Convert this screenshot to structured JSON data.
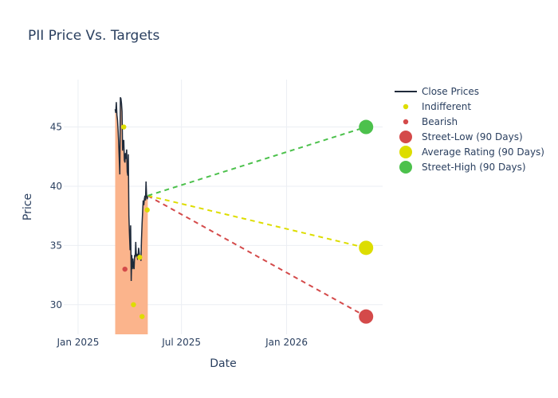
{
  "chart_data": {
    "type": "line",
    "title": "PII Price Vs. Targets",
    "xlabel": "Date",
    "ylabel": "Price",
    "xlim": [
      "2024-12-07",
      "2026-06-18"
    ],
    "ylim": [
      27.5,
      49.0
    ],
    "x_ticks": [
      {
        "date": "2025-01-01",
        "label": "Jan 2025"
      },
      {
        "date": "2025-07-01",
        "label": "Jul 2025"
      },
      {
        "date": "2026-01-01",
        "label": "Jan 2026"
      }
    ],
    "y_ticks": [
      30,
      35,
      40,
      45
    ],
    "grid": true,
    "legend_position": "right",
    "colors": {
      "close": "#1f2a3a",
      "area": "#fbb48c",
      "indifferent": "#dddd00",
      "bearish": "#d44a4a",
      "street_low": "#d44a4a",
      "average": "#dddd00",
      "street_high": "#4cc14c"
    },
    "close_prices": {
      "name": "Close Prices",
      "points": [
        [
          "2025-03-07",
          46.5
        ],
        [
          "2025-03-08",
          46.2
        ],
        [
          "2025-03-09",
          47.1
        ],
        [
          "2025-03-10",
          46.0
        ],
        [
          "2025-03-11",
          45.6
        ],
        [
          "2025-03-12",
          44.8
        ],
        [
          "2025-03-13",
          43.8
        ],
        [
          "2025-03-14",
          42.5
        ],
        [
          "2025-03-15",
          41.0
        ],
        [
          "2025-03-16",
          47.5
        ],
        [
          "2025-03-17",
          47.4
        ],
        [
          "2025-03-18",
          47.0
        ],
        [
          "2025-03-19",
          46.3
        ],
        [
          "2025-03-20",
          43.0
        ],
        [
          "2025-03-21",
          43.8
        ],
        [
          "2025-03-22",
          43.9
        ],
        [
          "2025-03-23",
          42.2
        ],
        [
          "2025-03-24",
          42.0
        ],
        [
          "2025-03-25",
          42.8
        ],
        [
          "2025-03-26",
          42.3
        ],
        [
          "2025-03-27",
          43.1
        ],
        [
          "2025-03-28",
          41.2
        ],
        [
          "2025-03-29",
          40.9
        ],
        [
          "2025-03-30",
          42.7
        ],
        [
          "2025-03-31",
          37.5
        ],
        [
          "2025-04-01",
          36.0
        ],
        [
          "2025-04-02",
          34.6
        ],
        [
          "2025-04-03",
          36.7
        ],
        [
          "2025-04-04",
          32.0
        ],
        [
          "2025-04-05",
          34.2
        ],
        [
          "2025-04-06",
          33.0
        ],
        [
          "2025-04-07",
          33.9
        ],
        [
          "2025-04-08",
          33.2
        ],
        [
          "2025-04-09",
          33.0
        ],
        [
          "2025-04-10",
          34.2
        ],
        [
          "2025-04-11",
          34.0
        ],
        [
          "2025-04-12",
          35.3
        ],
        [
          "2025-04-13",
          34.1
        ],
        [
          "2025-04-14",
          34.3
        ],
        [
          "2025-04-15",
          33.9
        ],
        [
          "2025-04-16",
          34.0
        ],
        [
          "2025-04-17",
          34.8
        ],
        [
          "2025-04-18",
          34.4
        ],
        [
          "2025-04-19",
          33.9
        ],
        [
          "2025-04-20",
          34.2
        ],
        [
          "2025-04-21",
          33.7
        ],
        [
          "2025-04-22",
          35.5
        ],
        [
          "2025-04-23",
          36.8
        ],
        [
          "2025-04-24",
          37.8
        ],
        [
          "2025-04-25",
          38.8
        ],
        [
          "2025-04-26",
          38.4
        ],
        [
          "2025-04-27",
          38.9
        ],
        [
          "2025-04-28",
          39.2
        ],
        [
          "2025-04-29",
          38.8
        ],
        [
          "2025-04-30",
          40.4
        ],
        [
          "2025-05-01",
          39.2
        ],
        [
          "2025-05-02",
          38.9
        ],
        [
          "2025-05-03",
          39.2
        ]
      ]
    },
    "indifferent": {
      "name": "Indifferent",
      "points": [
        [
          "2025-03-22",
          45.0
        ],
        [
          "2025-04-08",
          30.0
        ],
        [
          "2025-04-19",
          34.0
        ],
        [
          "2025-04-23",
          29.0
        ],
        [
          "2025-05-02",
          38.0
        ]
      ]
    },
    "bearish": {
      "name": "Bearish",
      "points": [
        [
          "2025-03-24",
          33.0
        ]
      ]
    },
    "targets": {
      "start": [
        "2025-05-03",
        39.2
      ],
      "end_date": "2026-05-20",
      "series": [
        {
          "name": "Street-Low (90 Days)",
          "value": 29.0,
          "color_key": "street_low"
        },
        {
          "name": "Average Rating (90 Days)",
          "value": 34.8,
          "color_key": "average"
        },
        {
          "name": "Street-High (90 Days)",
          "value": 45.0,
          "color_key": "street_high"
        }
      ]
    }
  }
}
